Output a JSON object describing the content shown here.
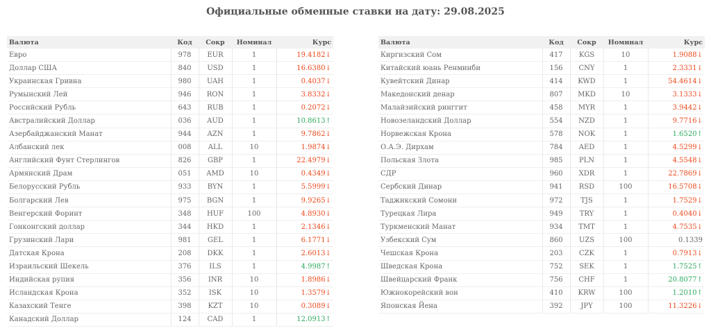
{
  "title": "Официальные обменные ставки на дату: 29.08.2025",
  "columns": {
    "name": "Валюта",
    "code": "Код",
    "abbr": "Сокр",
    "nominal": "Номинал",
    "rate": "Курс"
  },
  "left": [
    {
      "name": "Евро",
      "code": "978",
      "abbr": "EUR",
      "nominal": "1",
      "rate": "19.4182↓",
      "dir": "down"
    },
    {
      "name": "Доллар США",
      "code": "840",
      "abbr": "USD",
      "nominal": "1",
      "rate": "16.6380↓",
      "dir": "down"
    },
    {
      "name": "Украинская Гривна",
      "code": "980",
      "abbr": "UAH",
      "nominal": "1",
      "rate": "0.4037↓",
      "dir": "down"
    },
    {
      "name": "Румынский Лей",
      "code": "946",
      "abbr": "RON",
      "nominal": "1",
      "rate": "3.8332↓",
      "dir": "down"
    },
    {
      "name": "Российский Рубль",
      "code": "643",
      "abbr": "RUB",
      "nominal": "1",
      "rate": "0.2072↓",
      "dir": "down"
    },
    {
      "name": "Австралийский Доллар",
      "code": "036",
      "abbr": "AUD",
      "nominal": "1",
      "rate": "10.8613↑",
      "dir": "up"
    },
    {
      "name": "Азербайджанский Манат",
      "code": "944",
      "abbr": "AZN",
      "nominal": "1",
      "rate": "9.7862↓",
      "dir": "down"
    },
    {
      "name": "Албанский лек",
      "code": "008",
      "abbr": "ALL",
      "nominal": "10",
      "rate": "1.9874↓",
      "dir": "down"
    },
    {
      "name": "Английский Фунт Стерлингов",
      "code": "826",
      "abbr": "GBP",
      "nominal": "1",
      "rate": "22.4979↓",
      "dir": "down"
    },
    {
      "name": "Армянский Драм",
      "code": "051",
      "abbr": "AMD",
      "nominal": "10",
      "rate": "0.4349↓",
      "dir": "down"
    },
    {
      "name": "Белорусский Рубль",
      "code": "933",
      "abbr": "BYN",
      "nominal": "1",
      "rate": "5.5999↓",
      "dir": "down"
    },
    {
      "name": "Болгарский Лев",
      "code": "975",
      "abbr": "BGN",
      "nominal": "1",
      "rate": "9.9265↓",
      "dir": "down"
    },
    {
      "name": "Венгерский Форинт",
      "code": "348",
      "abbr": "HUF",
      "nominal": "100",
      "rate": "4.8930↓",
      "dir": "down"
    },
    {
      "name": "Гонконгский доллар",
      "code": "344",
      "abbr": "HKD",
      "nominal": "1",
      "rate": "2.1346↓",
      "dir": "down"
    },
    {
      "name": "Грузинский Лари",
      "code": "981",
      "abbr": "GEL",
      "nominal": "1",
      "rate": "6.1771↓",
      "dir": "down"
    },
    {
      "name": "Датская Крона",
      "code": "208",
      "abbr": "DKK",
      "nominal": "1",
      "rate": "2.6013↓",
      "dir": "down"
    },
    {
      "name": "Израильский Шекель",
      "code": "376",
      "abbr": "ILS",
      "nominal": "1",
      "rate": "4.9987↑",
      "dir": "up"
    },
    {
      "name": "Индийская рупия",
      "code": "356",
      "abbr": "INR",
      "nominal": "10",
      "rate": "1.8986↓",
      "dir": "down"
    },
    {
      "name": "Исландская Крона",
      "code": "352",
      "abbr": "ISK",
      "nominal": "10",
      "rate": "1.3579↓",
      "dir": "down"
    },
    {
      "name": "Казахский Тенге",
      "code": "398",
      "abbr": "KZT",
      "nominal": "10",
      "rate": "0.3089↓",
      "dir": "down"
    },
    {
      "name": "Канадский Доллар",
      "code": "124",
      "abbr": "CAD",
      "nominal": "1",
      "rate": "12.0913↑",
      "dir": "up"
    }
  ],
  "right": [
    {
      "name": "Киргизский Сом",
      "code": "417",
      "abbr": "KGS",
      "nominal": "10",
      "rate": "1.9088↓",
      "dir": "down"
    },
    {
      "name": "Китайский юань Ренминби",
      "code": "156",
      "abbr": "CNY",
      "nominal": "1",
      "rate": "2.3331↓",
      "dir": "down"
    },
    {
      "name": "Кувейтский Динар",
      "code": "414",
      "abbr": "KWD",
      "nominal": "1",
      "rate": "54.4614↓",
      "dir": "down"
    },
    {
      "name": "Македонский денар",
      "code": "807",
      "abbr": "MKD",
      "nominal": "10",
      "rate": "3.1333↓",
      "dir": "down"
    },
    {
      "name": "Малайзийский ринггит",
      "code": "458",
      "abbr": "MYR",
      "nominal": "1",
      "rate": "3.9442↓",
      "dir": "down"
    },
    {
      "name": "Новозеландский Доллар",
      "code": "554",
      "abbr": "NZD",
      "nominal": "1",
      "rate": "9.7716↓",
      "dir": "down"
    },
    {
      "name": "Норвежская Крона",
      "code": "578",
      "abbr": "NOK",
      "nominal": "1",
      "rate": "1.6520↑",
      "dir": "up"
    },
    {
      "name": "О.А.Э. Дирхам",
      "code": "784",
      "abbr": "AED",
      "nominal": "1",
      "rate": "4.5299↓",
      "dir": "down"
    },
    {
      "name": "Польская Злота",
      "code": "985",
      "abbr": "PLN",
      "nominal": "1",
      "rate": "4.5548↓",
      "dir": "down"
    },
    {
      "name": "СДР",
      "code": "960",
      "abbr": "XDR",
      "nominal": "1",
      "rate": "22.7869↓",
      "dir": "down"
    },
    {
      "name": "Сербский Динар",
      "code": "941",
      "abbr": "RSD",
      "nominal": "100",
      "rate": "16.5708↓",
      "dir": "down"
    },
    {
      "name": "Таджикский Сомони",
      "code": "972",
      "abbr": "TJS",
      "nominal": "1",
      "rate": "1.7529↓",
      "dir": "down"
    },
    {
      "name": "Турецкая Лира",
      "code": "949",
      "abbr": "TRY",
      "nominal": "1",
      "rate": "0.4040↓",
      "dir": "down"
    },
    {
      "name": "Туркменский Манат",
      "code": "934",
      "abbr": "TMT",
      "nominal": "1",
      "rate": "4.7535↓",
      "dir": "down"
    },
    {
      "name": "Узбекский Сум",
      "code": "860",
      "abbr": "UZS",
      "nominal": "100",
      "rate": "0.1339",
      "dir": "flat"
    },
    {
      "name": "Чешская Крона",
      "code": "203",
      "abbr": "CZK",
      "nominal": "1",
      "rate": "0.7913↓",
      "dir": "down"
    },
    {
      "name": "Шведская Крона",
      "code": "752",
      "abbr": "SEK",
      "nominal": "1",
      "rate": "1.7525↑",
      "dir": "up"
    },
    {
      "name": "Швейцарский Франк",
      "code": "756",
      "abbr": "CHF",
      "nominal": "1",
      "rate": "20.8077↑",
      "dir": "up"
    },
    {
      "name": "Южнокорейский вон",
      "code": "410",
      "abbr": "KRW",
      "nominal": "100",
      "rate": "1.2010↑",
      "dir": "up"
    },
    {
      "name": "Японская Йена",
      "code": "392",
      "abbr": "JPY",
      "nominal": "100",
      "rate": "11.3226↓",
      "dir": "down"
    }
  ],
  "colors": {
    "down": "#ec4a1d",
    "up": "#2eaa5e"
  }
}
